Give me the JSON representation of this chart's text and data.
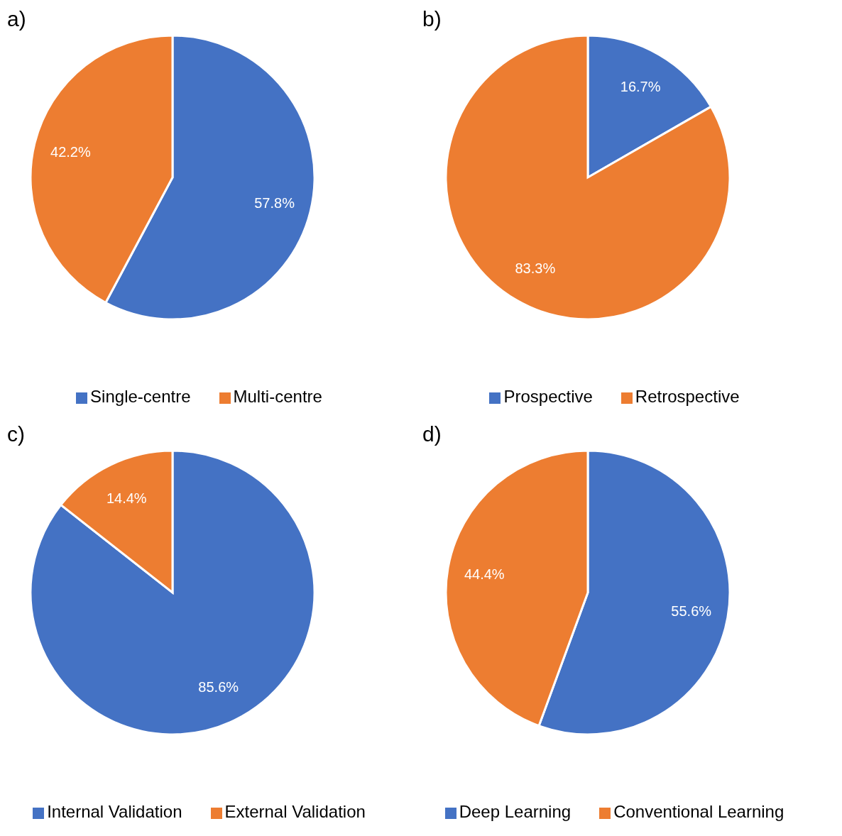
{
  "chart_data": [
    {
      "type": "pie",
      "title": "a)",
      "categories": [
        "Single-centre",
        "Multi-centre"
      ],
      "values": [
        57.8,
        42.2
      ],
      "value_labels": [
        "57.8%",
        "42.2%"
      ],
      "colors": [
        "#4472c4",
        "#ed7d31"
      ],
      "legend": "bottom"
    },
    {
      "type": "pie",
      "title": "b)",
      "categories": [
        "Prospective",
        "Retrospective"
      ],
      "values": [
        16.7,
        83.3
      ],
      "value_labels": [
        "16.7%",
        "83.3%"
      ],
      "colors": [
        "#4472c4",
        "#ed7d31"
      ],
      "legend": "bottom"
    },
    {
      "type": "pie",
      "title": "c)",
      "categories": [
        "Internal Validation",
        "External Validation"
      ],
      "values": [
        85.6,
        14.4
      ],
      "value_labels": [
        "85.6%",
        "14.4%"
      ],
      "colors": [
        "#4472c4",
        "#ed7d31"
      ],
      "legend": "bottom"
    },
    {
      "type": "pie",
      "title": "d)",
      "categories": [
        "Deep Learning",
        "Conventional Learning"
      ],
      "values": [
        55.6,
        44.4
      ],
      "value_labels": [
        "55.6%",
        "44.4%"
      ],
      "colors": [
        "#4472c4",
        "#ed7d31"
      ],
      "legend": "bottom"
    }
  ]
}
